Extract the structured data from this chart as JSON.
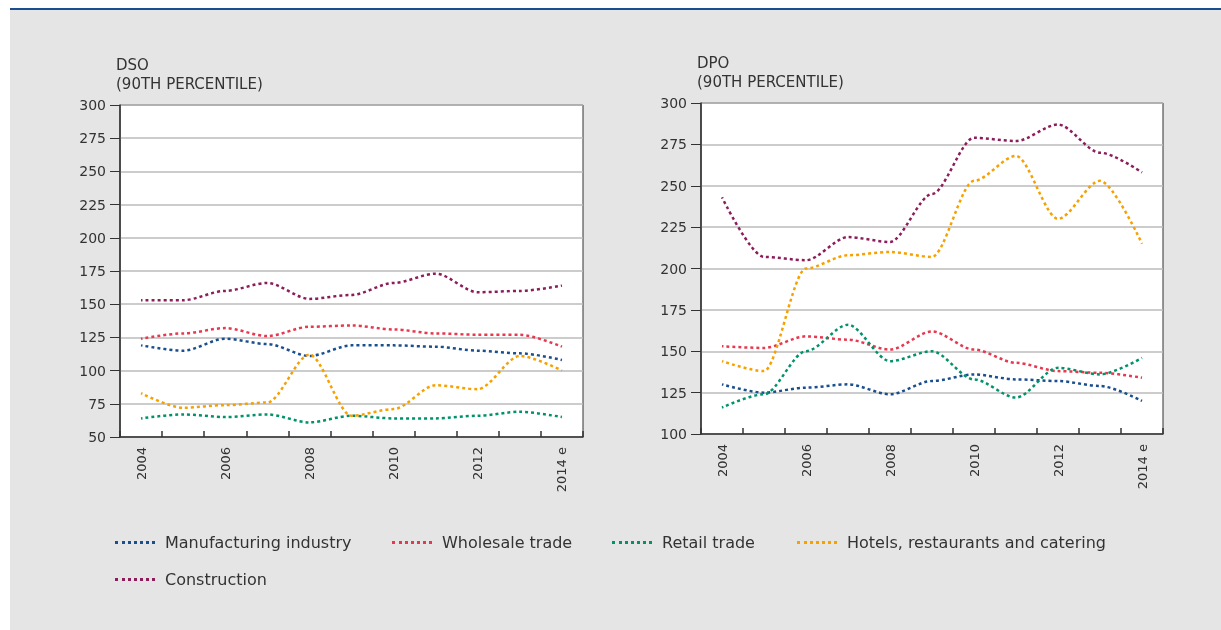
{
  "chart_data": [
    {
      "type": "line",
      "ylabel": "DSO\n(90TH PERCENTILE)",
      "categories": [
        "2004",
        null,
        "2006",
        null,
        "2008",
        null,
        "2010",
        null,
        "2012",
        null,
        "2014 e"
      ],
      "ylim": [
        50,
        300
      ],
      "yticks": [
        50,
        75,
        100,
        125,
        150,
        175,
        200,
        225,
        250,
        275,
        300
      ],
      "grid": "y",
      "marker": "none",
      "line_style": "dotted",
      "legend": "bottom",
      "series": [
        {
          "name": "Manufacturing industry",
          "color": "#1a4f8f",
          "values": [
            119,
            115,
            124,
            120,
            111,
            119,
            119,
            118,
            115,
            113,
            108
          ]
        },
        {
          "name": "Wholesale trade",
          "color": "#e8384f",
          "values": [
            124,
            128,
            132,
            126,
            133,
            134,
            131,
            128,
            127,
            127,
            118
          ]
        },
        {
          "name": "Retail trade",
          "color": "#00936a",
          "values": [
            64,
            67,
            65,
            67,
            61,
            66,
            64,
            64,
            66,
            69,
            65
          ]
        },
        {
          "name": "Hotels, restaurants and catering",
          "color": "#f7a100",
          "values": [
            83,
            72,
            74,
            76,
            112,
            66,
            71,
            89,
            86,
            111,
            100
          ]
        },
        {
          "name": "Construction",
          "color": "#8c1c5a",
          "values": [
            153,
            153,
            160,
            166,
            154,
            157,
            166,
            173,
            159,
            160,
            164
          ]
        }
      ]
    },
    {
      "type": "line",
      "ylabel": "DPO\n(90TH PERCENTILE)",
      "categories": [
        "2004",
        null,
        "2006",
        null,
        "2008",
        null,
        "2010",
        null,
        "2012",
        null,
        "2014 e"
      ],
      "ylim": [
        100,
        300
      ],
      "yticks": [
        100,
        125,
        150,
        175,
        200,
        225,
        250,
        275,
        300
      ],
      "grid": "y",
      "marker": "none",
      "line_style": "dotted",
      "series": [
        {
          "name": "Manufacturing industry",
          "color": "#1a4f8f",
          "values": [
            130,
            125,
            128,
            130,
            124,
            132,
            136,
            133,
            132,
            129,
            120
          ]
        },
        {
          "name": "Wholesale trade",
          "color": "#e8384f",
          "values": [
            153,
            152,
            159,
            157,
            151,
            162,
            151,
            143,
            138,
            137,
            134
          ]
        },
        {
          "name": "Retail trade",
          "color": "#00936a",
          "values": [
            116,
            124,
            150,
            166,
            144,
            150,
            133,
            122,
            140,
            136,
            146
          ]
        },
        {
          "name": "Hotels, restaurants and catering",
          "color": "#f7a100",
          "values": [
            144,
            138,
            200,
            208,
            210,
            207,
            253,
            268,
            230,
            253,
            215
          ]
        },
        {
          "name": "Construction",
          "color": "#8c1c5a",
          "values": [
            243,
            207,
            205,
            219,
            216,
            245,
            279,
            277,
            287,
            270,
            258
          ]
        }
      ]
    }
  ]
}
